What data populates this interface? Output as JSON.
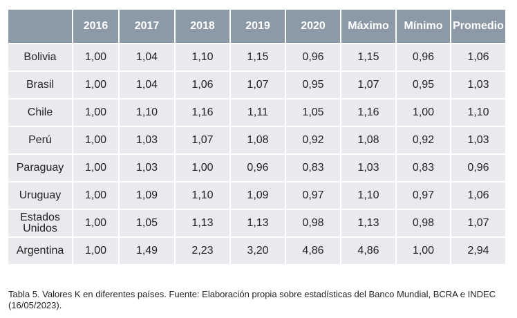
{
  "table": {
    "header": [
      "",
      "2016",
      "2017",
      "2018",
      "2019",
      "2020",
      "Máximo",
      "Mínimo",
      "Promedio"
    ],
    "rows": [
      [
        "Bolivia",
        "1,00",
        "1,04",
        "1,10",
        "1,15",
        "0,96",
        "1,15",
        "0,96",
        "1,06"
      ],
      [
        "Brasil",
        "1,00",
        "1,04",
        "1,06",
        "1,07",
        "0,95",
        "1,07",
        "0,95",
        "1,03"
      ],
      [
        "Chile",
        "1,00",
        "1,10",
        "1,16",
        "1,11",
        "1,05",
        "1,16",
        "1,00",
        "1,10"
      ],
      [
        "Perú",
        "1,00",
        "1,03",
        "1,07",
        "1,08",
        "0,92",
        "1,08",
        "0,92",
        "1,03"
      ],
      [
        "Paraguay",
        "1,00",
        "1,03",
        "1,00",
        "0,96",
        "0,83",
        "1,03",
        "0,83",
        "0,96"
      ],
      [
        "Uruguay",
        "1,00",
        "1,09",
        "1,10",
        "1,09",
        "0,97",
        "1,10",
        "0,97",
        "1,06"
      ],
      [
        "Estados Unidos",
        "1,00",
        "1,05",
        "1,13",
        "1,13",
        "0,98",
        "1,13",
        "0,98",
        "1,07"
      ],
      [
        "Argentina",
        "1,00",
        "1,49",
        "2,23",
        "3,20",
        "4,86",
        "4,86",
        "1,00",
        "2,94"
      ]
    ]
  },
  "caption": "Tabla 5. Valores K en diferentes países. Fuente: Elaboración propia sobre estadísticas del Banco Mundial, BCRA e INDEC (16/05/2023)."
}
